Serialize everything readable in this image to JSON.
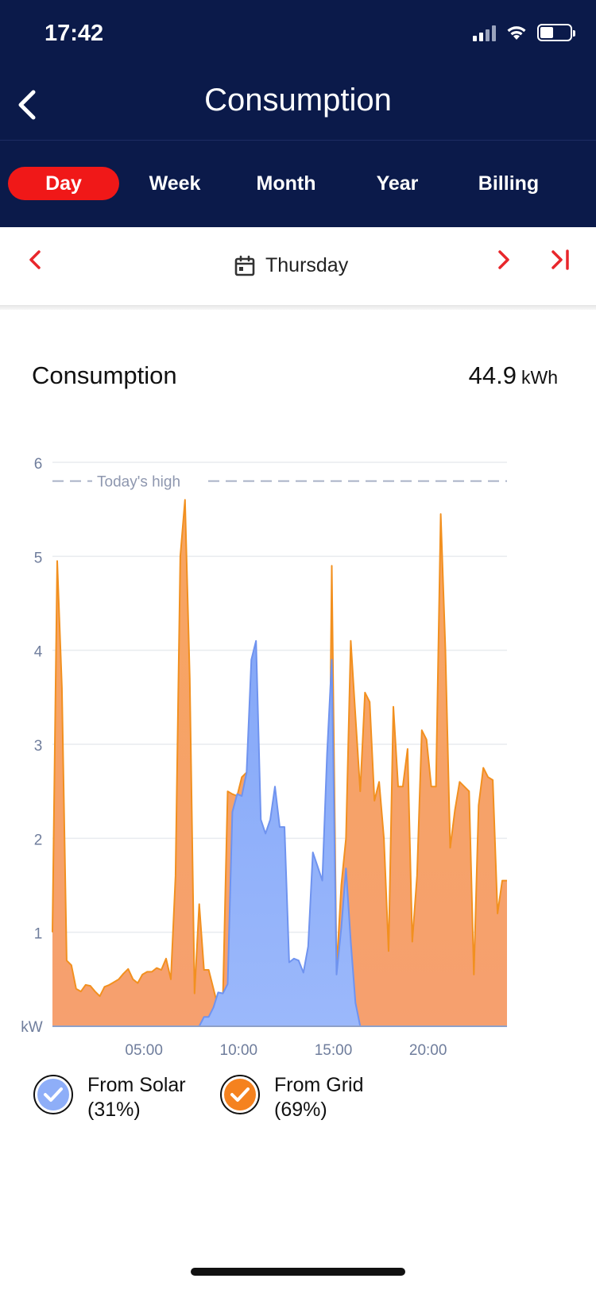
{
  "status_bar": {
    "time": "17:42"
  },
  "header": {
    "title": "Consumption"
  },
  "tabs": [
    {
      "label": "Day",
      "active": true
    },
    {
      "label": "Week",
      "active": false
    },
    {
      "label": "Month",
      "active": false
    },
    {
      "label": "Year",
      "active": false
    },
    {
      "label": "Billing",
      "active": false
    }
  ],
  "date_nav": {
    "label": "Thursday"
  },
  "summary": {
    "title": "Consumption",
    "value": "44.9",
    "unit": "kWh"
  },
  "colors": {
    "navy": "#0b1a4a",
    "accent_red": "#f01818",
    "solar": "#8eaef8",
    "grid": "#f6a569"
  },
  "chart_data": {
    "type": "area",
    "ylabel": "kW",
    "ylim": [
      0,
      6
    ],
    "yticks": [
      "1",
      "2",
      "3",
      "4",
      "5",
      "6"
    ],
    "xlim": [
      0,
      24
    ],
    "xticks": [
      {
        "x": 5,
        "label": "05:00"
      },
      {
        "x": 10,
        "label": "10:00"
      },
      {
        "x": 15,
        "label": "15:00"
      },
      {
        "x": 20,
        "label": "20:00"
      }
    ],
    "reference_line": {
      "label": "Today's high",
      "value": 5.8
    },
    "legend": [
      {
        "label": "From Solar",
        "percent": "(31%)",
        "color": "#8eaef8"
      },
      {
        "label": "From Grid",
        "percent": "(69%)",
        "color": "#f6a569"
      }
    ],
    "series": [
      {
        "name": "From Grid",
        "color": "#f6a569",
        "points": [
          [
            0,
            1.0
          ],
          [
            0.25,
            4.95
          ],
          [
            0.5,
            3.6
          ],
          [
            0.75,
            0.7
          ],
          [
            1.0,
            0.65
          ],
          [
            1.25,
            0.4
          ],
          [
            1.5,
            0.37
          ],
          [
            1.75,
            0.44
          ],
          [
            2.0,
            0.43
          ],
          [
            2.25,
            0.37
          ],
          [
            2.5,
            0.32
          ],
          [
            2.75,
            0.42
          ],
          [
            3.0,
            0.44
          ],
          [
            3.25,
            0.47
          ],
          [
            3.5,
            0.5
          ],
          [
            3.75,
            0.56
          ],
          [
            4.0,
            0.61
          ],
          [
            4.25,
            0.5
          ],
          [
            4.5,
            0.46
          ],
          [
            4.75,
            0.55
          ],
          [
            5.0,
            0.58
          ],
          [
            5.25,
            0.58
          ],
          [
            5.5,
            0.62
          ],
          [
            5.75,
            0.6
          ],
          [
            6.0,
            0.72
          ],
          [
            6.25,
            0.5
          ],
          [
            6.5,
            1.6
          ],
          [
            6.75,
            5.0
          ],
          [
            7.0,
            5.6
          ],
          [
            7.25,
            3.7
          ],
          [
            7.5,
            0.35
          ],
          [
            7.75,
            1.3
          ],
          [
            8.0,
            0.6
          ],
          [
            8.25,
            0.6
          ],
          [
            8.5,
            0.4
          ],
          [
            8.75,
            0.2
          ],
          [
            9.0,
            0.3
          ],
          [
            9.25,
            2.5
          ],
          [
            9.5,
            2.47
          ],
          [
            9.75,
            2.45
          ],
          [
            10.0,
            2.65
          ],
          [
            10.25,
            2.7
          ],
          [
            10.5,
            2.0
          ],
          [
            10.75,
            0.8
          ],
          [
            11.0,
            0.3
          ],
          [
            11.5,
            0.0
          ],
          [
            14.5,
            0.0
          ],
          [
            14.75,
            4.9
          ],
          [
            15.0,
            0.6
          ],
          [
            15.25,
            1.5
          ],
          [
            15.5,
            2.0
          ],
          [
            15.75,
            4.1
          ],
          [
            16.0,
            3.3
          ],
          [
            16.25,
            2.5
          ],
          [
            16.5,
            3.55
          ],
          [
            16.75,
            3.45
          ],
          [
            17.0,
            2.4
          ],
          [
            17.25,
            2.6
          ],
          [
            17.5,
            2.0
          ],
          [
            17.75,
            0.8
          ],
          [
            18.0,
            3.4
          ],
          [
            18.25,
            2.55
          ],
          [
            18.5,
            2.55
          ],
          [
            18.75,
            2.95
          ],
          [
            19.0,
            0.9
          ],
          [
            19.25,
            1.6
          ],
          [
            19.5,
            3.15
          ],
          [
            19.75,
            3.05
          ],
          [
            20.0,
            2.55
          ],
          [
            20.25,
            2.55
          ],
          [
            20.5,
            5.45
          ],
          [
            20.75,
            4.0
          ],
          [
            21.0,
            1.9
          ],
          [
            21.25,
            2.3
          ],
          [
            21.5,
            2.6
          ],
          [
            21.75,
            2.55
          ],
          [
            22.0,
            2.5
          ],
          [
            22.25,
            0.55
          ],
          [
            22.5,
            2.35
          ],
          [
            22.75,
            2.75
          ],
          [
            23.0,
            2.65
          ],
          [
            23.25,
            2.62
          ],
          [
            23.5,
            1.2
          ],
          [
            23.75,
            1.55
          ],
          [
            24.0,
            1.55
          ]
        ]
      },
      {
        "name": "From Solar",
        "color": "#8eaef8",
        "points": [
          [
            0,
            0.0
          ],
          [
            7.75,
            0.0
          ],
          [
            8.0,
            0.1
          ],
          [
            8.25,
            0.1
          ],
          [
            8.5,
            0.2
          ],
          [
            8.75,
            0.36
          ],
          [
            9.0,
            0.35
          ],
          [
            9.25,
            0.45
          ],
          [
            9.5,
            2.28
          ],
          [
            9.75,
            2.47
          ],
          [
            10.0,
            2.45
          ],
          [
            10.25,
            2.7
          ],
          [
            10.5,
            3.9
          ],
          [
            10.75,
            4.1
          ],
          [
            11.0,
            2.2
          ],
          [
            11.25,
            2.05
          ],
          [
            11.5,
            2.2
          ],
          [
            11.75,
            2.55
          ],
          [
            12.0,
            2.12
          ],
          [
            12.25,
            2.12
          ],
          [
            12.5,
            0.68
          ],
          [
            12.75,
            0.72
          ],
          [
            13.0,
            0.7
          ],
          [
            13.25,
            0.57
          ],
          [
            13.5,
            0.85
          ],
          [
            13.75,
            1.85
          ],
          [
            14.0,
            1.7
          ],
          [
            14.25,
            1.55
          ],
          [
            14.5,
            2.9
          ],
          [
            14.75,
            3.9
          ],
          [
            15.0,
            0.55
          ],
          [
            15.25,
            1.05
          ],
          [
            15.5,
            1.68
          ],
          [
            15.75,
            0.9
          ],
          [
            16.0,
            0.25
          ],
          [
            16.25,
            0.0
          ],
          [
            24.0,
            0.0
          ]
        ]
      }
    ]
  }
}
